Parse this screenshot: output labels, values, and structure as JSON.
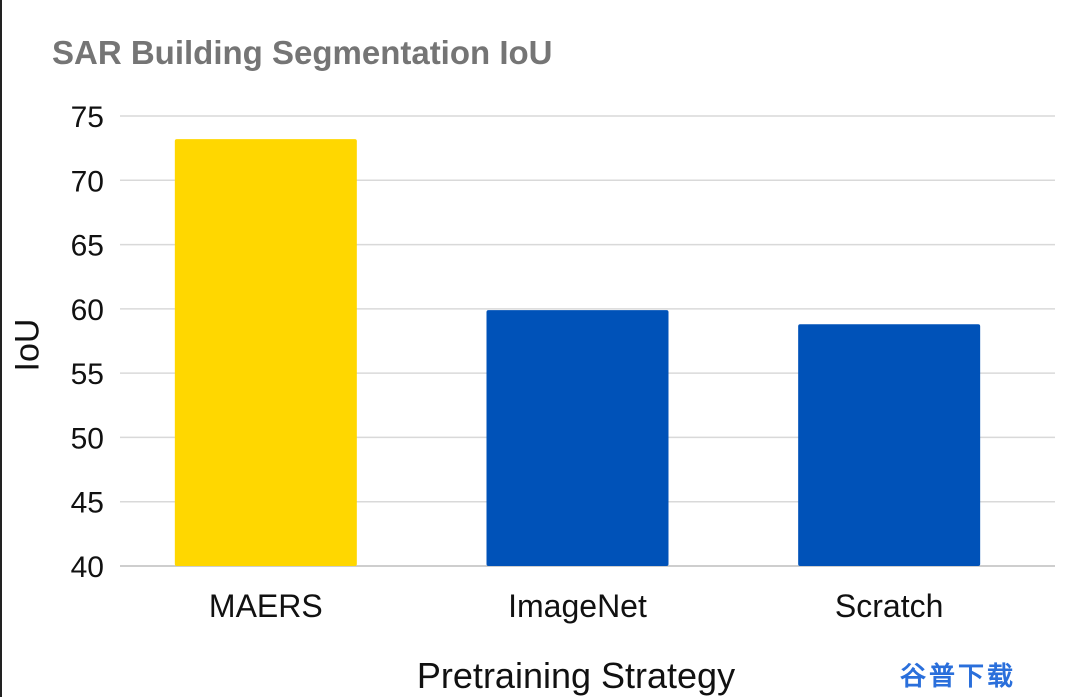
{
  "chart_data": {
    "type": "bar",
    "title": "SAR Building Segmentation IoU",
    "xlabel": "Pretraining Strategy",
    "ylabel": "IoU",
    "categories": [
      "MAERS",
      "ImageNet",
      "Scratch"
    ],
    "values": [
      73.2,
      59.9,
      58.8
    ],
    "bar_colors": [
      "#FFD700",
      "#0052B8",
      "#0052B8"
    ],
    "ylim": [
      40,
      75
    ],
    "yticks": [
      40,
      45,
      50,
      55,
      60,
      65,
      70,
      75
    ],
    "grid": true,
    "legend": "none"
  },
  "watermark": {
    "text": "谷普下载"
  },
  "colors": {
    "title": "#757575",
    "gridline": "#d9d9d9",
    "axis_text": "#111111"
  }
}
